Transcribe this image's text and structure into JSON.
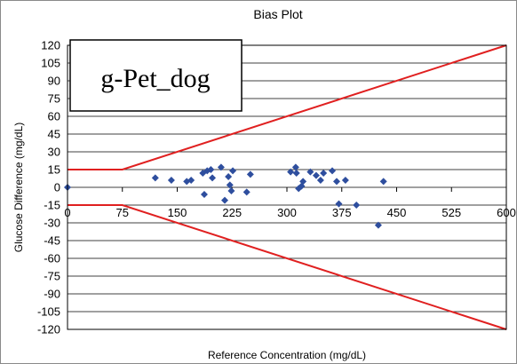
{
  "chart_data": {
    "type": "scatter",
    "title": "Bias  Plot",
    "xlabel": "Reference Concentration (mg/dL)",
    "ylabel": "Glucose Difference (mg/dL)",
    "annotation": "g-Pet_dog",
    "xlim": [
      0,
      600
    ],
    "ylim": [
      -120,
      120
    ],
    "xticks": [
      "0",
      "75",
      "150",
      "225",
      "300",
      "375",
      "450",
      "525",
      "600"
    ],
    "yticks": [
      "120",
      "105",
      "90",
      "75",
      "60",
      "45",
      "30",
      "15",
      "0",
      "-15",
      "-30",
      "-45",
      "-60",
      "-75",
      "-90",
      "-105",
      "-120"
    ],
    "grid": true,
    "colors": {
      "points": "#2e4e9e",
      "limits": "#e02020",
      "grid": "#000000"
    },
    "limit_lines": [
      {
        "x": [
          0,
          75,
          600
        ],
        "y": [
          15,
          15,
          120
        ]
      },
      {
        "x": [
          0,
          75,
          600
        ],
        "y": [
          -15,
          -15,
          -120
        ]
      }
    ],
    "series": [
      {
        "x": [
          0,
          120,
          142,
          163,
          169,
          185,
          187,
          191,
          196,
          198,
          210,
          215,
          220,
          222,
          224,
          226,
          245,
          250,
          305,
          312,
          313,
          316,
          320,
          322,
          332,
          340,
          346,
          350,
          362,
          368,
          371,
          380,
          395,
          425,
          432
        ],
        "y": [
          0,
          8,
          6,
          5,
          6,
          12,
          -6,
          14,
          15,
          8,
          17,
          -11,
          9,
          2,
          -3,
          14,
          -4,
          11,
          13,
          17,
          12,
          -1,
          1,
          5,
          13,
          10,
          6,
          12,
          14,
          5,
          -14,
          6,
          -15,
          -32,
          5
        ]
      }
    ]
  }
}
